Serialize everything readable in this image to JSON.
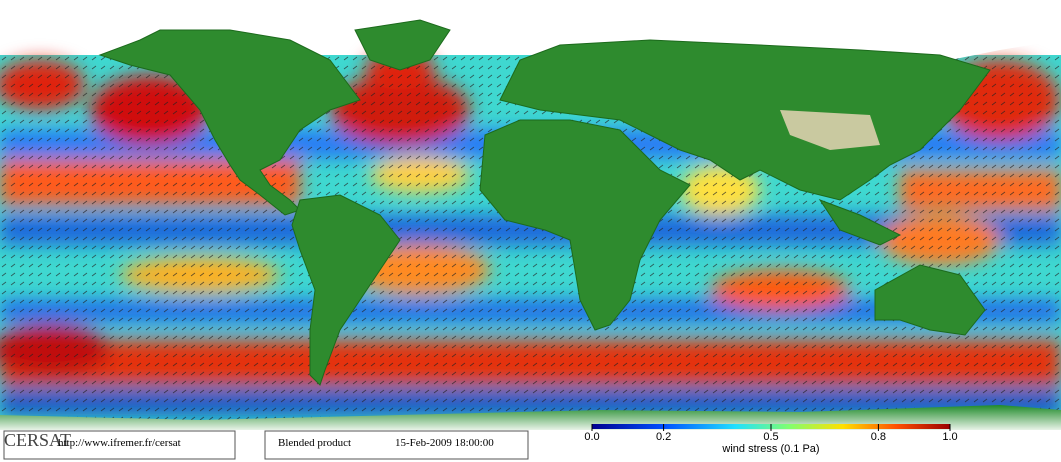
{
  "logo": "CERSAT",
  "url": "http://www.ifremer.fr/cersat",
  "product": "Blended product",
  "date": "15-Feb-2009 18:00:00",
  "colorbar": {
    "label": "wind stress (0.1 Pa)",
    "lim": [
      0,
      1
    ],
    "ticks": [
      {
        "value": 0,
        "label": "0.0"
      },
      0.2,
      0.5,
      0.8,
      {
        "value": 1,
        "label": "1.0"
      }
    ]
  }
}
